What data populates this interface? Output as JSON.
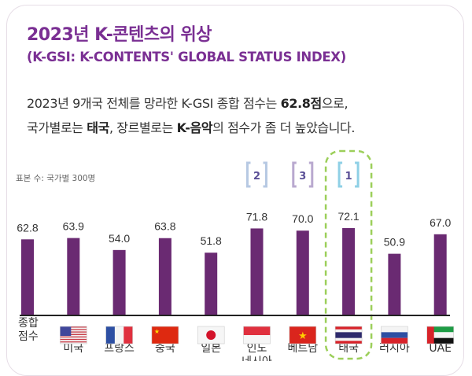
{
  "header": {
    "title": "2023년 K-콘텐츠의 위상",
    "subtitle": "(K-GSI: K-CONTENTS' GLOBAL STATUS INDEX)"
  },
  "description": {
    "line1_a": "2023년 9개국 전체를 망라한 K-GSI 종합 점수는 ",
    "line1_b": "62.8점",
    "line1_c": "으로,",
    "line2_a": "국가별로는 ",
    "line2_b": "태국",
    "line2_c": ", 장르별로는 ",
    "line2_d": "K-음악",
    "line2_e": "의 점수가 좀 더 높았습니다."
  },
  "chart_data": {
    "type": "bar",
    "note": "표본 수: 국가별 300명",
    "categories": [
      "종합\n점수",
      "미국",
      "프랑스",
      "중국",
      "일본",
      "인도\n네시아",
      "베트남",
      "태국",
      "러시아",
      "UAE"
    ],
    "flags": [
      null,
      "us-flag",
      "france-flag",
      "china-flag",
      "japan-flag",
      "indonesia-flag",
      "vietnam-flag",
      "thailand-flag",
      "russia-flag",
      "uae-flag"
    ],
    "values": [
      62.8,
      63.9,
      54.0,
      63.8,
      51.8,
      71.8,
      70.0,
      72.1,
      50.9,
      67.0
    ],
    "value_labels": [
      "62.8",
      "63.9",
      "54.0",
      "63.8",
      "51.8",
      "71.8",
      "70.0",
      "72.1",
      "50.9",
      "67.0"
    ],
    "ranks": [
      {
        "category": "인도\n네시아",
        "rank": "2",
        "color": "#b7c9e3"
      },
      {
        "category": "베트남",
        "rank": "3",
        "color": "#b9a9cf"
      },
      {
        "category": "태국",
        "rank": "1",
        "color": "#8fd0e6"
      }
    ],
    "highlight": "태국",
    "highlight_color": "#9ccf5a",
    "bar_color": "#6a2a72",
    "ylim": [
      0,
      80
    ],
    "grid": false
  }
}
